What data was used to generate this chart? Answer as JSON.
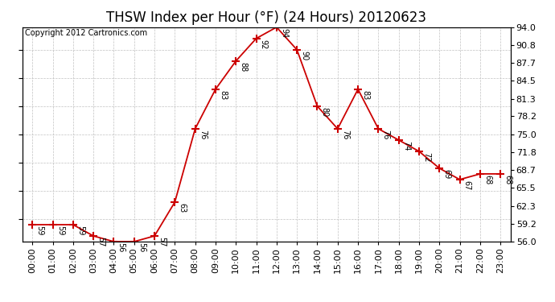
{
  "title": "THSW Index per Hour (°F) (24 Hours) 20120623",
  "copyright": "Copyright 2012 Cartronics.com",
  "hours": [
    "00:00",
    "01:00",
    "02:00",
    "03:00",
    "04:00",
    "05:00",
    "06:00",
    "07:00",
    "08:00",
    "09:00",
    "10:00",
    "11:00",
    "12:00",
    "13:00",
    "14:00",
    "15:00",
    "16:00",
    "17:00",
    "18:00",
    "19:00",
    "20:00",
    "21:00",
    "22:00",
    "23:00"
  ],
  "values": [
    59,
    59,
    59,
    57,
    56,
    56,
    57,
    63,
    76,
    83,
    88,
    92,
    94,
    90,
    80,
    76,
    83,
    76,
    74,
    72,
    69,
    67,
    68,
    68
  ],
  "line_color": "#cc0000",
  "marker_color": "#cc0000",
  "bg_color": "#ffffff",
  "grid_color": "#bbbbbb",
  "ylim_min": 56.0,
  "ylim_max": 94.0,
  "yticks": [
    56.0,
    59.2,
    62.3,
    65.5,
    68.7,
    71.8,
    75.0,
    78.2,
    81.3,
    84.5,
    87.7,
    90.8,
    94.0
  ],
  "title_fontsize": 12,
  "annotation_fontsize": 7,
  "copyright_fontsize": 7,
  "tick_fontsize": 8
}
